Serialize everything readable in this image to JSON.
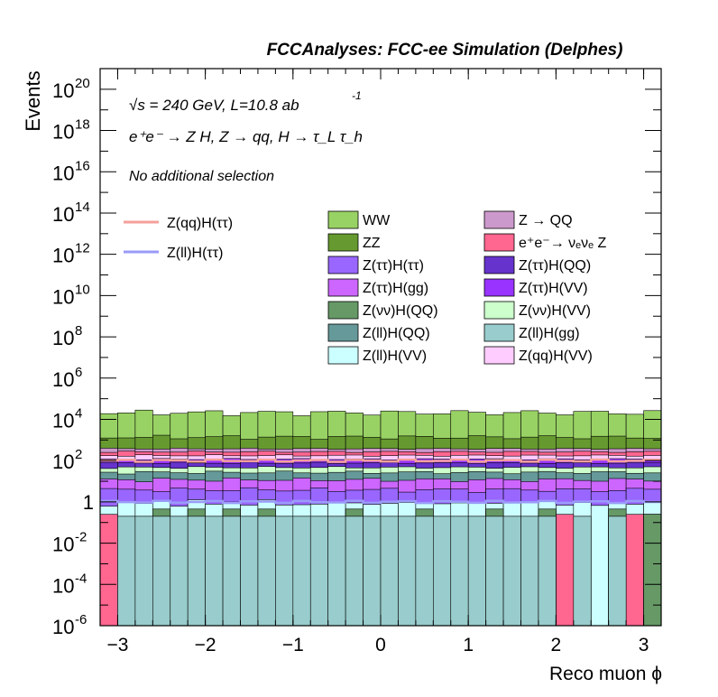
{
  "header": {
    "title": "FCCAnalyses: FCC-ee Simulation (Delphes)"
  },
  "annotations": {
    "energy_lumi": "√s = 240 GeV, L=10.8 ab",
    "lumi_exp": "-1",
    "process": "e⁺e⁻ → Z H, Z → qq, H → τ_L τ_h",
    "selection": "No additional selection"
  },
  "axes": {
    "ylabel": "Events",
    "xlabel": "Reco muon ϕ",
    "x_ticks": [
      "−3",
      "−2",
      "−1",
      "0",
      "1",
      "2",
      "3"
    ],
    "y_ticks": [
      {
        "base": "10",
        "exp": "20"
      },
      {
        "base": "10",
        "exp": "18"
      },
      {
        "base": "10",
        "exp": "16"
      },
      {
        "base": "10",
        "exp": "14"
      },
      {
        "base": "10",
        "exp": "12"
      },
      {
        "base": "10",
        "exp": "10"
      },
      {
        "base": "10",
        "exp": "8"
      },
      {
        "base": "10",
        "exp": "6"
      },
      {
        "base": "10",
        "exp": "4"
      },
      {
        "base": "10",
        "exp": "2"
      },
      {
        "base": "1",
        "exp": ""
      },
      {
        "base": "10",
        "exp": "-2"
      },
      {
        "base": "10",
        "exp": "-4"
      },
      {
        "base": "10",
        "exp": "-6"
      }
    ]
  },
  "legend": {
    "signals": [
      {
        "label": "Z(qq)H(ττ)",
        "color": "#f4a09b"
      },
      {
        "label": "Z(ll)H(ττ)",
        "color": "#9a9bf7"
      }
    ],
    "backgrounds": [
      {
        "label": "WW",
        "color": "#99d264"
      },
      {
        "label": "Z → QQ",
        "color": "#cc99cc"
      },
      {
        "label": "ZZ",
        "color": "#66992f"
      },
      {
        "label": "e⁺e⁻→ νₑνₑ Z",
        "color": "#ff6690"
      },
      {
        "label": "Z(ττ)H(ττ)",
        "color": "#9966ff"
      },
      {
        "label": "Z(ττ)H(QQ)",
        "color": "#6633cc"
      },
      {
        "label": "Z(ττ)H(gg)",
        "color": "#cc66ff"
      },
      {
        "label": "Z(ττ)H(VV)",
        "color": "#9933ff"
      },
      {
        "label": "Z(νν)H(QQ)",
        "color": "#669966"
      },
      {
        "label": "Z(νν)H(VV)",
        "color": "#ccffcc"
      },
      {
        "label": "Z(ll)H(QQ)",
        "color": "#669999"
      },
      {
        "label": "Z(ll)H(gg)",
        "color": "#99cccc"
      },
      {
        "label": "Z(ll)H(VV)",
        "color": "#ccffff"
      },
      {
        "label": "Z(qq)H(VV)",
        "color": "#ffccff"
      }
    ]
  },
  "chart_data": {
    "type": "histogram",
    "stacked": true,
    "title": "FCCAnalyses: FCC-ee Simulation (Delphes)",
    "xlabel": "Reco muon ϕ",
    "ylabel": "Events",
    "log_y": true,
    "xlim": [
      -3.2,
      3.2
    ],
    "ylim": [
      1e-06,
      1e+21
    ],
    "bins": 32,
    "stack_layers": [
      {
        "name": "Z(ll)H(gg)",
        "color": "#99cccc",
        "value": 0.2,
        "alt_values": {
          "0": 1e-06,
          "31": 1e-06,
          "26": 1e-06,
          "28": 1e-06,
          "30": 1e-06
        }
      },
      {
        "name": "Z(νν)H(QQ)",
        "color": "#669966",
        "present_bins": [
          3,
          5,
          7,
          9,
          14,
          18,
          22,
          25,
          29,
          31
        ],
        "value": 0.25
      },
      {
        "name": "e⁺e⁻→ νₑνₑ Z",
        "color": "#ff6690",
        "present_bins": [
          0,
          26,
          30
        ],
        "value": 0.25
      },
      {
        "name": "Z(ll)H(VV)",
        "color": "#ccffff",
        "value": 0.6
      },
      {
        "name": "Z(ττ)H(ττ)",
        "color": "#9966ff",
        "value": 3.0
      },
      {
        "name": "Z(ττ)H(gg)",
        "color": "#cc66ff",
        "value": 8.0
      },
      {
        "name": "Z(ll)H(QQ)",
        "color": "#669999",
        "value": 15.0
      },
      {
        "name": "Z(νν)H(VV)",
        "color": "#ccffcc",
        "value": 20.0
      },
      {
        "name": "Z(ττ)H(QQ)",
        "color": "#6633cc",
        "value": 30.0
      },
      {
        "name": "Z(ττ)H(VV)",
        "color": "#9933ff",
        "value": 40.0
      },
      {
        "name": "Z(qq)H(VV)",
        "color": "#ffccff",
        "value": 60.0
      },
      {
        "name": "e⁺e⁻→ νₑνₑ Z (stack)",
        "color": "#ff6690",
        "value": 90.0
      },
      {
        "name": "Z → QQ",
        "color": "#cc99cc",
        "value": 110.0
      },
      {
        "name": "ZZ",
        "color": "#66992f",
        "value": 1000.0
      },
      {
        "name": "WW",
        "color": "#99d264",
        "value": 20000.0
      }
    ],
    "signal_lines": [
      {
        "name": "Z(qq)H(ττ)",
        "color": "#f4a09b",
        "value": 100.0
      },
      {
        "name": "Z(ll)H(ττ)",
        "color": "#9a9bf7",
        "value": 1.0
      }
    ],
    "x_ticks": [
      -3,
      -2,
      -1,
      0,
      1,
      2,
      3
    ],
    "y_ticks_exp": [
      20,
      18,
      16,
      14,
      12,
      10,
      8,
      6,
      4,
      2,
      0,
      -2,
      -4,
      -6
    ]
  }
}
